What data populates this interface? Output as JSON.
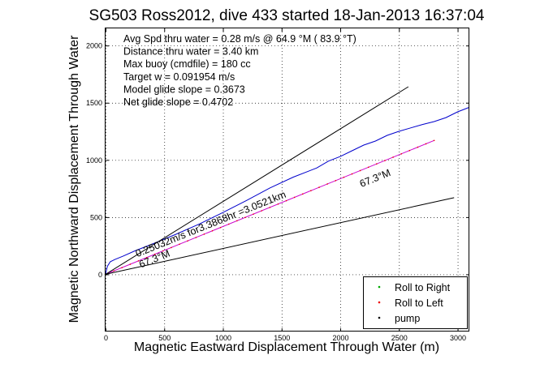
{
  "chart_data": {
    "type": "line",
    "title": "SG503 Ross2012, dive 433 started 18-Jan-2013 16:37:04",
    "xlabel": "Magnetic Eastward Displacement Through Water (m)",
    "ylabel": "Magnetic Northward Displacement Through Water",
    "xlim": [
      0,
      3100
    ],
    "ylim": [
      -500,
      2150
    ],
    "xticks": [
      0,
      500,
      1000,
      1500,
      2000,
      2500,
      3000
    ],
    "yticks": [
      0,
      500,
      1000,
      1500,
      2000
    ],
    "grid": true,
    "legend_position": "bottom-right",
    "legend": [
      {
        "label": "Roll to Right",
        "color": "#00aa00"
      },
      {
        "label": "Roll to Left",
        "color": "#ee0000"
      },
      {
        "label": "pump",
        "color": "#000000"
      }
    ],
    "info_lines": [
      "Avg Spd thru water = 0.28 m/s @ 64.9 °M ( 83.9 °T)",
      "Distance thru water = 3.40 km",
      "Max buoy (cmdfile) = 180 cc",
      "Target w = 0.091954 m/s",
      "Model glide slope = 0.3673",
      "Net glide slope = 0.4702"
    ],
    "annotations": [
      {
        "text": "0.25032m/s for3.3868hr =3.0521km",
        "x": 270,
        "y": 150,
        "rotation_deg": -22
      },
      {
        "text": "67.3°M",
        "x": 300,
        "y": 55,
        "rotation_deg": -22
      },
      {
        "text": "67.3°M",
        "x": 2180,
        "y": 760,
        "rotation_deg": -22
      }
    ],
    "series": [
      {
        "color": "#0000cc",
        "x": [
          0,
          15,
          40,
          80,
          150,
          250,
          400,
          600,
          800,
          1000,
          1200,
          1400,
          1600,
          1800,
          1900,
          2000,
          2100,
          2200,
          2300,
          2400,
          2500,
          2600,
          2700,
          2800,
          2900,
          3000,
          3100
        ],
        "y": [
          0,
          70,
          110,
          130,
          160,
          205,
          265,
          350,
          440,
          540,
          645,
          755,
          850,
          930,
          990,
          1030,
          1080,
          1130,
          1165,
          1215,
          1250,
          1280,
          1310,
          1335,
          1370,
          1420,
          1460
        ]
      },
      {
        "color": "#cc00cc",
        "x": [
          0,
          2800
        ],
        "y": [
          0,
          1170
        ]
      },
      {
        "color": "#000000",
        "x": [
          0,
          2580
        ],
        "y": [
          0,
          1640
        ]
      },
      {
        "color": "#000000",
        "x": [
          0,
          2970
        ],
        "y": [
          0,
          670
        ]
      }
    ]
  }
}
